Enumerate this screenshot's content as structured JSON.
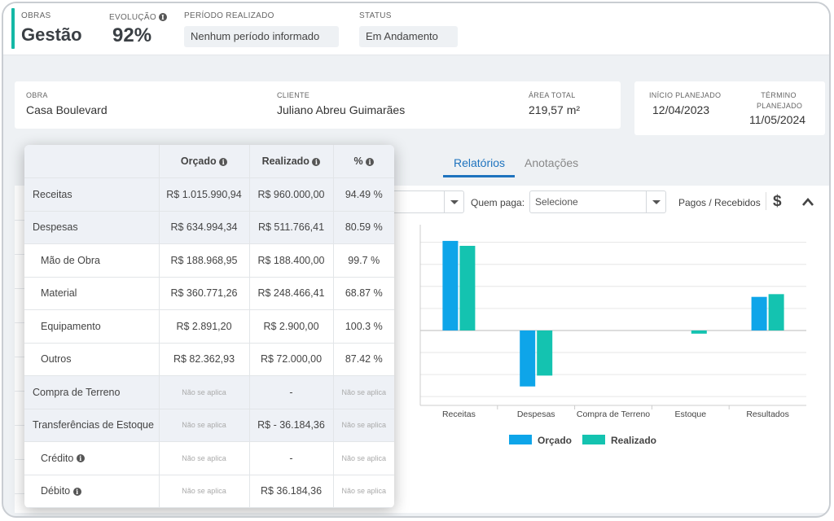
{
  "header": {
    "obras_label": "OBRAS",
    "title": "Gestão",
    "evolucao_label": "EVOLUÇÃO",
    "evolucao_value": "92%",
    "periodo_label": "PERÍODO REALIZADO",
    "periodo_value": "Nenhum período informado",
    "status_label": "STATUS",
    "status_value": "Em Andamento",
    "accent_color": "#14b8a6"
  },
  "info": {
    "obra_label": "OBRA",
    "obra_value": "Casa Boulevard",
    "cliente_label": "CLIENTE",
    "cliente_value": "Juliano Abreu Guimarães",
    "area_label": "ÁREA TOTAL",
    "area_value": "219,57 m²",
    "inicio_label": "INÍCIO PLANEJADO",
    "inicio_value": "12/04/2023",
    "termino_label_1": "TÉRMINO",
    "termino_label_2": "PLANEJADO",
    "termino_value": "11/05/2024"
  },
  "tabs": {
    "relatorios": "Relatórios",
    "anotacoes": "Anotações",
    "active_color": "#1e73be"
  },
  "filters": {
    "quem_paga_label": "Quem paga:",
    "quem_paga_value": "Selecione",
    "pagos_label": "Pagos / Recebidos",
    "currency_icon": "dollar-icon",
    "collapse_icon": "chevron-up-icon"
  },
  "table": {
    "headers": [
      "",
      "Orçado",
      "Realizado",
      "%"
    ],
    "rows": [
      {
        "label": "Receitas",
        "orcado": "R$ 1.015.990,94",
        "realizado": "R$ 960.000,00",
        "pct": "94.49 %"
      },
      {
        "label": "Despesas",
        "orcado": "R$ 634.994,34",
        "realizado": "R$ 511.766,41",
        "pct": "80.59 %"
      },
      {
        "label": "Mão de Obra",
        "orcado": "R$ 188.968,95",
        "realizado": "R$ 188.400,00",
        "pct": "99.7 %"
      },
      {
        "label": "Material",
        "orcado": "R$ 360.771,26",
        "realizado": "R$ 248.466,41",
        "pct": "68.87 %"
      },
      {
        "label": "Equipamento",
        "orcado": "R$ 2.891,20",
        "realizado": "R$ 2.900,00",
        "pct": "100.3 %"
      },
      {
        "label": "Outros",
        "orcado": "R$ 82.362,93",
        "realizado": "R$ 72.000,00",
        "pct": "87.42 %"
      },
      {
        "label": "Compra de Terreno",
        "orcado": "Não se aplica",
        "realizado": "-",
        "pct": "Não se aplica"
      },
      {
        "label": "Transferências de Estoque",
        "orcado": "Não se aplica",
        "realizado": "R$ - 36.184,36",
        "pct": "Não se aplica"
      },
      {
        "label": "Crédito",
        "orcado": "Não se aplica",
        "realizado": "-",
        "pct": "Não se aplica"
      },
      {
        "label": "Débito",
        "orcado": "Não se aplica",
        "realizado": "R$ 36.184,36",
        "pct": "Não se aplica"
      }
    ]
  },
  "chart_data": {
    "type": "bar",
    "categories": [
      "Receitas",
      "Despesas",
      "Compra de Terreno",
      "Estoque",
      "Resultados"
    ],
    "series": [
      {
        "name": "Orçado",
        "color": "#0ea5e9",
        "values": [
          1015990.94,
          -634994.34,
          0,
          0,
          380996.6
        ]
      },
      {
        "name": "Realizado",
        "color": "#14c3b0",
        "values": [
          960000.0,
          -511766.41,
          0,
          -36184.36,
          412049.23
        ]
      }
    ],
    "ylim": [
      -850000,
      1200000
    ],
    "grid": true,
    "legend_position": "bottom"
  }
}
